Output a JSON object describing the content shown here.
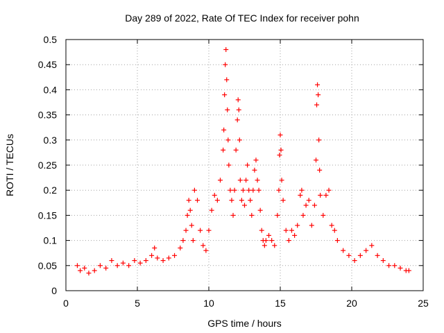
{
  "chart_data": {
    "type": "scatter",
    "title": "Day 289 of 2022, Rate Of TEC Index for receiver pohn",
    "xlabel": "GPS time / hours",
    "ylabel": "ROTI / TECUs",
    "xlim": [
      0,
      25
    ],
    "ylim": [
      0,
      0.5
    ],
    "x_ticks": [
      0,
      5,
      10,
      15,
      20,
      25
    ],
    "y_ticks": [
      0,
      0.05,
      0.1,
      0.15,
      0.2,
      0.25,
      0.3,
      0.35,
      0.4,
      0.45,
      0.5
    ],
    "x_tick_labels": [
      "0",
      "5",
      "10",
      "15",
      "20",
      "25"
    ],
    "y_tick_labels": [
      "0",
      "0.05",
      "0.1",
      "0.15",
      "0.2",
      "0.25",
      "0.3",
      "0.35",
      "0.4",
      "0.45",
      "0.5"
    ],
    "grid": true,
    "marker": "+",
    "marker_color": "#ff0000",
    "series": [
      {
        "x": [
          0.8,
          1.0,
          1.3,
          1.6,
          2.0,
          2.4,
          2.8,
          3.2,
          3.6,
          4.0,
          4.4,
          4.8,
          5.2,
          5.6,
          6.0,
          6.2,
          6.4,
          6.8,
          7.2,
          7.6,
          8.0,
          8.2,
          8.4,
          8.5,
          8.6,
          8.7,
          8.8,
          8.9,
          9.0,
          9.2,
          9.4,
          9.6,
          9.8,
          10.0,
          10.2,
          10.4,
          10.6,
          10.8,
          11.0,
          11.05,
          11.1,
          11.15,
          11.2,
          11.25,
          11.3,
          11.35,
          11.4,
          11.5,
          11.6,
          11.7,
          11.8,
          11.9,
          12.0,
          12.05,
          12.1,
          12.15,
          12.2,
          12.3,
          12.4,
          12.5,
          12.6,
          12.7,
          12.8,
          12.9,
          13.0,
          13.1,
          13.2,
          13.3,
          13.4,
          13.5,
          13.6,
          13.7,
          13.8,
          13.9,
          14.0,
          14.2,
          14.4,
          14.6,
          14.8,
          14.9,
          14.95,
          15.0,
          15.05,
          15.1,
          15.2,
          15.4,
          15.6,
          15.8,
          16.0,
          16.2,
          16.4,
          16.5,
          16.6,
          16.8,
          17.0,
          17.2,
          17.4,
          17.5,
          17.55,
          17.6,
          17.65,
          17.7,
          17.75,
          17.8,
          18.0,
          18.2,
          18.4,
          18.6,
          18.8,
          19.0,
          19.4,
          19.8,
          20.2,
          20.6,
          21.0,
          21.4,
          21.8,
          22.2,
          22.6,
          23.0,
          23.4,
          23.8,
          24.0
        ],
        "y": [
          0.05,
          0.04,
          0.045,
          0.035,
          0.04,
          0.05,
          0.045,
          0.06,
          0.05,
          0.055,
          0.05,
          0.06,
          0.055,
          0.06,
          0.07,
          0.085,
          0.065,
          0.06,
          0.065,
          0.07,
          0.085,
          0.1,
          0.12,
          0.15,
          0.18,
          0.16,
          0.13,
          0.1,
          0.2,
          0.18,
          0.12,
          0.09,
          0.08,
          0.12,
          0.16,
          0.19,
          0.18,
          0.22,
          0.28,
          0.32,
          0.39,
          0.45,
          0.48,
          0.42,
          0.36,
          0.3,
          0.25,
          0.2,
          0.18,
          0.15,
          0.2,
          0.28,
          0.34,
          0.38,
          0.36,
          0.3,
          0.22,
          0.18,
          0.2,
          0.17,
          0.22,
          0.25,
          0.2,
          0.18,
          0.15,
          0.2,
          0.24,
          0.26,
          0.22,
          0.2,
          0.16,
          0.12,
          0.1,
          0.09,
          0.1,
          0.11,
          0.1,
          0.09,
          0.15,
          0.2,
          0.27,
          0.31,
          0.28,
          0.22,
          0.18,
          0.12,
          0.1,
          0.12,
          0.11,
          0.13,
          0.19,
          0.2,
          0.15,
          0.17,
          0.18,
          0.13,
          0.17,
          0.26,
          0.37,
          0.41,
          0.39,
          0.3,
          0.24,
          0.19,
          0.15,
          0.19,
          0.2,
          0.13,
          0.12,
          0.1,
          0.08,
          0.07,
          0.06,
          0.07,
          0.08,
          0.09,
          0.07,
          0.06,
          0.05,
          0.05,
          0.045,
          0.04,
          0.04
        ]
      }
    ]
  }
}
